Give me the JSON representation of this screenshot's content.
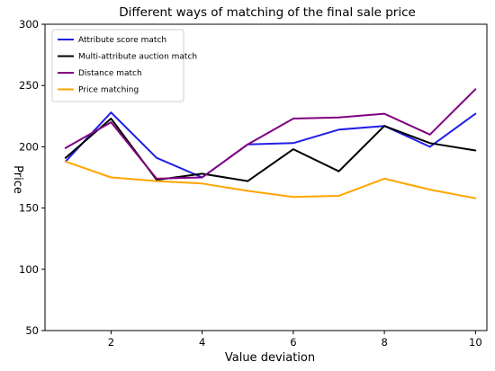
{
  "chart_data": {
    "type": "line",
    "title": "Different ways of matching of the final sale price",
    "xlabel": "Value deviation",
    "ylabel": "Price",
    "x": [
      1,
      2,
      3,
      4,
      5,
      6,
      7,
      8,
      9,
      10
    ],
    "xlim": [
      0.55,
      10.25
    ],
    "ylim": [
      50,
      300
    ],
    "xticks": [
      2,
      4,
      6,
      8,
      10
    ],
    "yticks": [
      50,
      100,
      150,
      200,
      250,
      300
    ],
    "grid": false,
    "legend_position": "top-left",
    "series": [
      {
        "name": "Attribute score match",
        "color": "#1f1fe6",
        "values": [
          188,
          228,
          191,
          175,
          202,
          203,
          214,
          217,
          200,
          227
        ]
      },
      {
        "name": "Multi-attribute auction match",
        "color": "#000000",
        "values": [
          191,
          223,
          173,
          178,
          172,
          198,
          180,
          217,
          203,
          197
        ]
      },
      {
        "name": "Distance match",
        "color": "#800080",
        "values": [
          199,
          220,
          174,
          175,
          202,
          223,
          224,
          227,
          210,
          247
        ]
      },
      {
        "name": "Price matching",
        "color": "#ffa500",
        "values": [
          188,
          175,
          172,
          170,
          164,
          159,
          160,
          174,
          165,
          158
        ]
      }
    ]
  }
}
